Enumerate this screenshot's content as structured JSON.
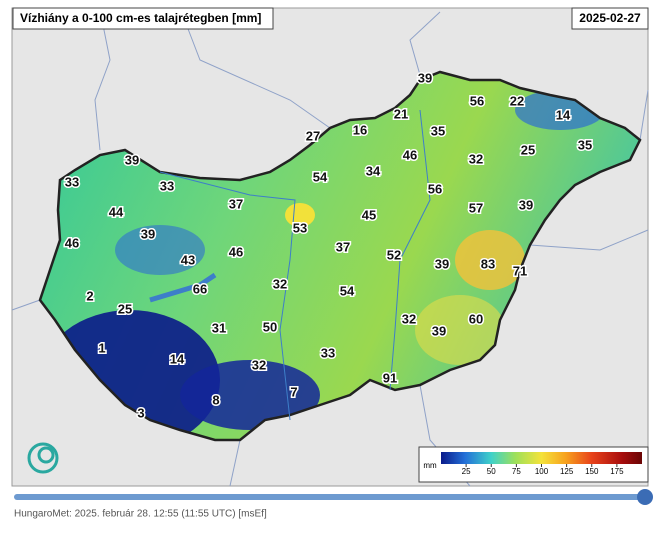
{
  "header": {
    "title": "Vízhiány a 0-100 cm-es talajrétegben [mm]",
    "date": "2025-02-27"
  },
  "stations": [
    39,
    56,
    22,
    21,
    14,
    27,
    16,
    35,
    25,
    35,
    46,
    32,
    39,
    33,
    33,
    54,
    34,
    56,
    44,
    37,
    45,
    57,
    39,
    46,
    39,
    53,
    37,
    43,
    46,
    52,
    39,
    83,
    71,
    2,
    66,
    32,
    54,
    25,
    31,
    50,
    32,
    39,
    60,
    1,
    14,
    33,
    32,
    91,
    7,
    8,
    3
  ],
  "legend": {
    "unit": "mm",
    "ticks": [
      25,
      50,
      75,
      100,
      125,
      150,
      175
    ]
  },
  "footer": {
    "text": "HungaroMet: 2025. február 28. 12:55 (11:55 UTC) [msEf]"
  }
}
